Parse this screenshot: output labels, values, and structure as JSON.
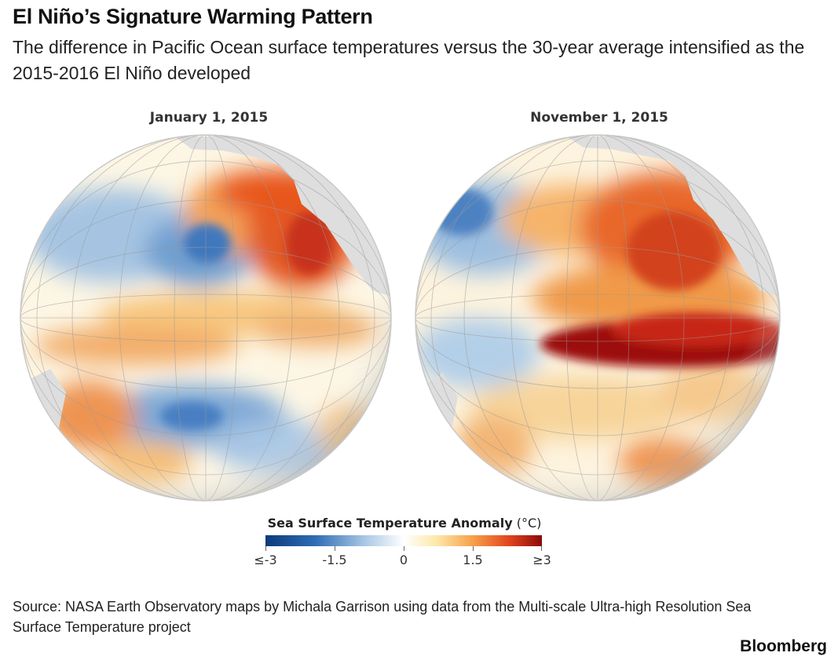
{
  "header": {
    "title": "El Niño’s Signature Warming Pattern",
    "subtitle": "The difference in Pacific Ocean surface temperatures versus the 30-year average intensified as the 2015-2016 El Niño developed"
  },
  "maps": [
    {
      "date_label": "January 1, 2015",
      "pattern": "jan"
    },
    {
      "date_label": "November 1, 2015",
      "pattern": "nov"
    }
  ],
  "legend": {
    "title_bold": "Sea Surface Temperature Anomaly",
    "title_unit": "(°C)",
    "ticks": [
      "≤-3",
      "-1.5",
      "0",
      "1.5",
      "≥3"
    ],
    "colors": [
      "#0d3a7a",
      "#2f6db5",
      "#a9c8e4",
      "#ffffff",
      "#fde8a8",
      "#f6a04a",
      "#e2461e",
      "#8b0a0a"
    ]
  },
  "footer": {
    "source": "Source: NASA Earth Observatory maps by Michala Garrison using data from the Multi-scale Ultra-high Resolution Sea Surface Temperature project",
    "brand": "Bloomberg"
  }
}
